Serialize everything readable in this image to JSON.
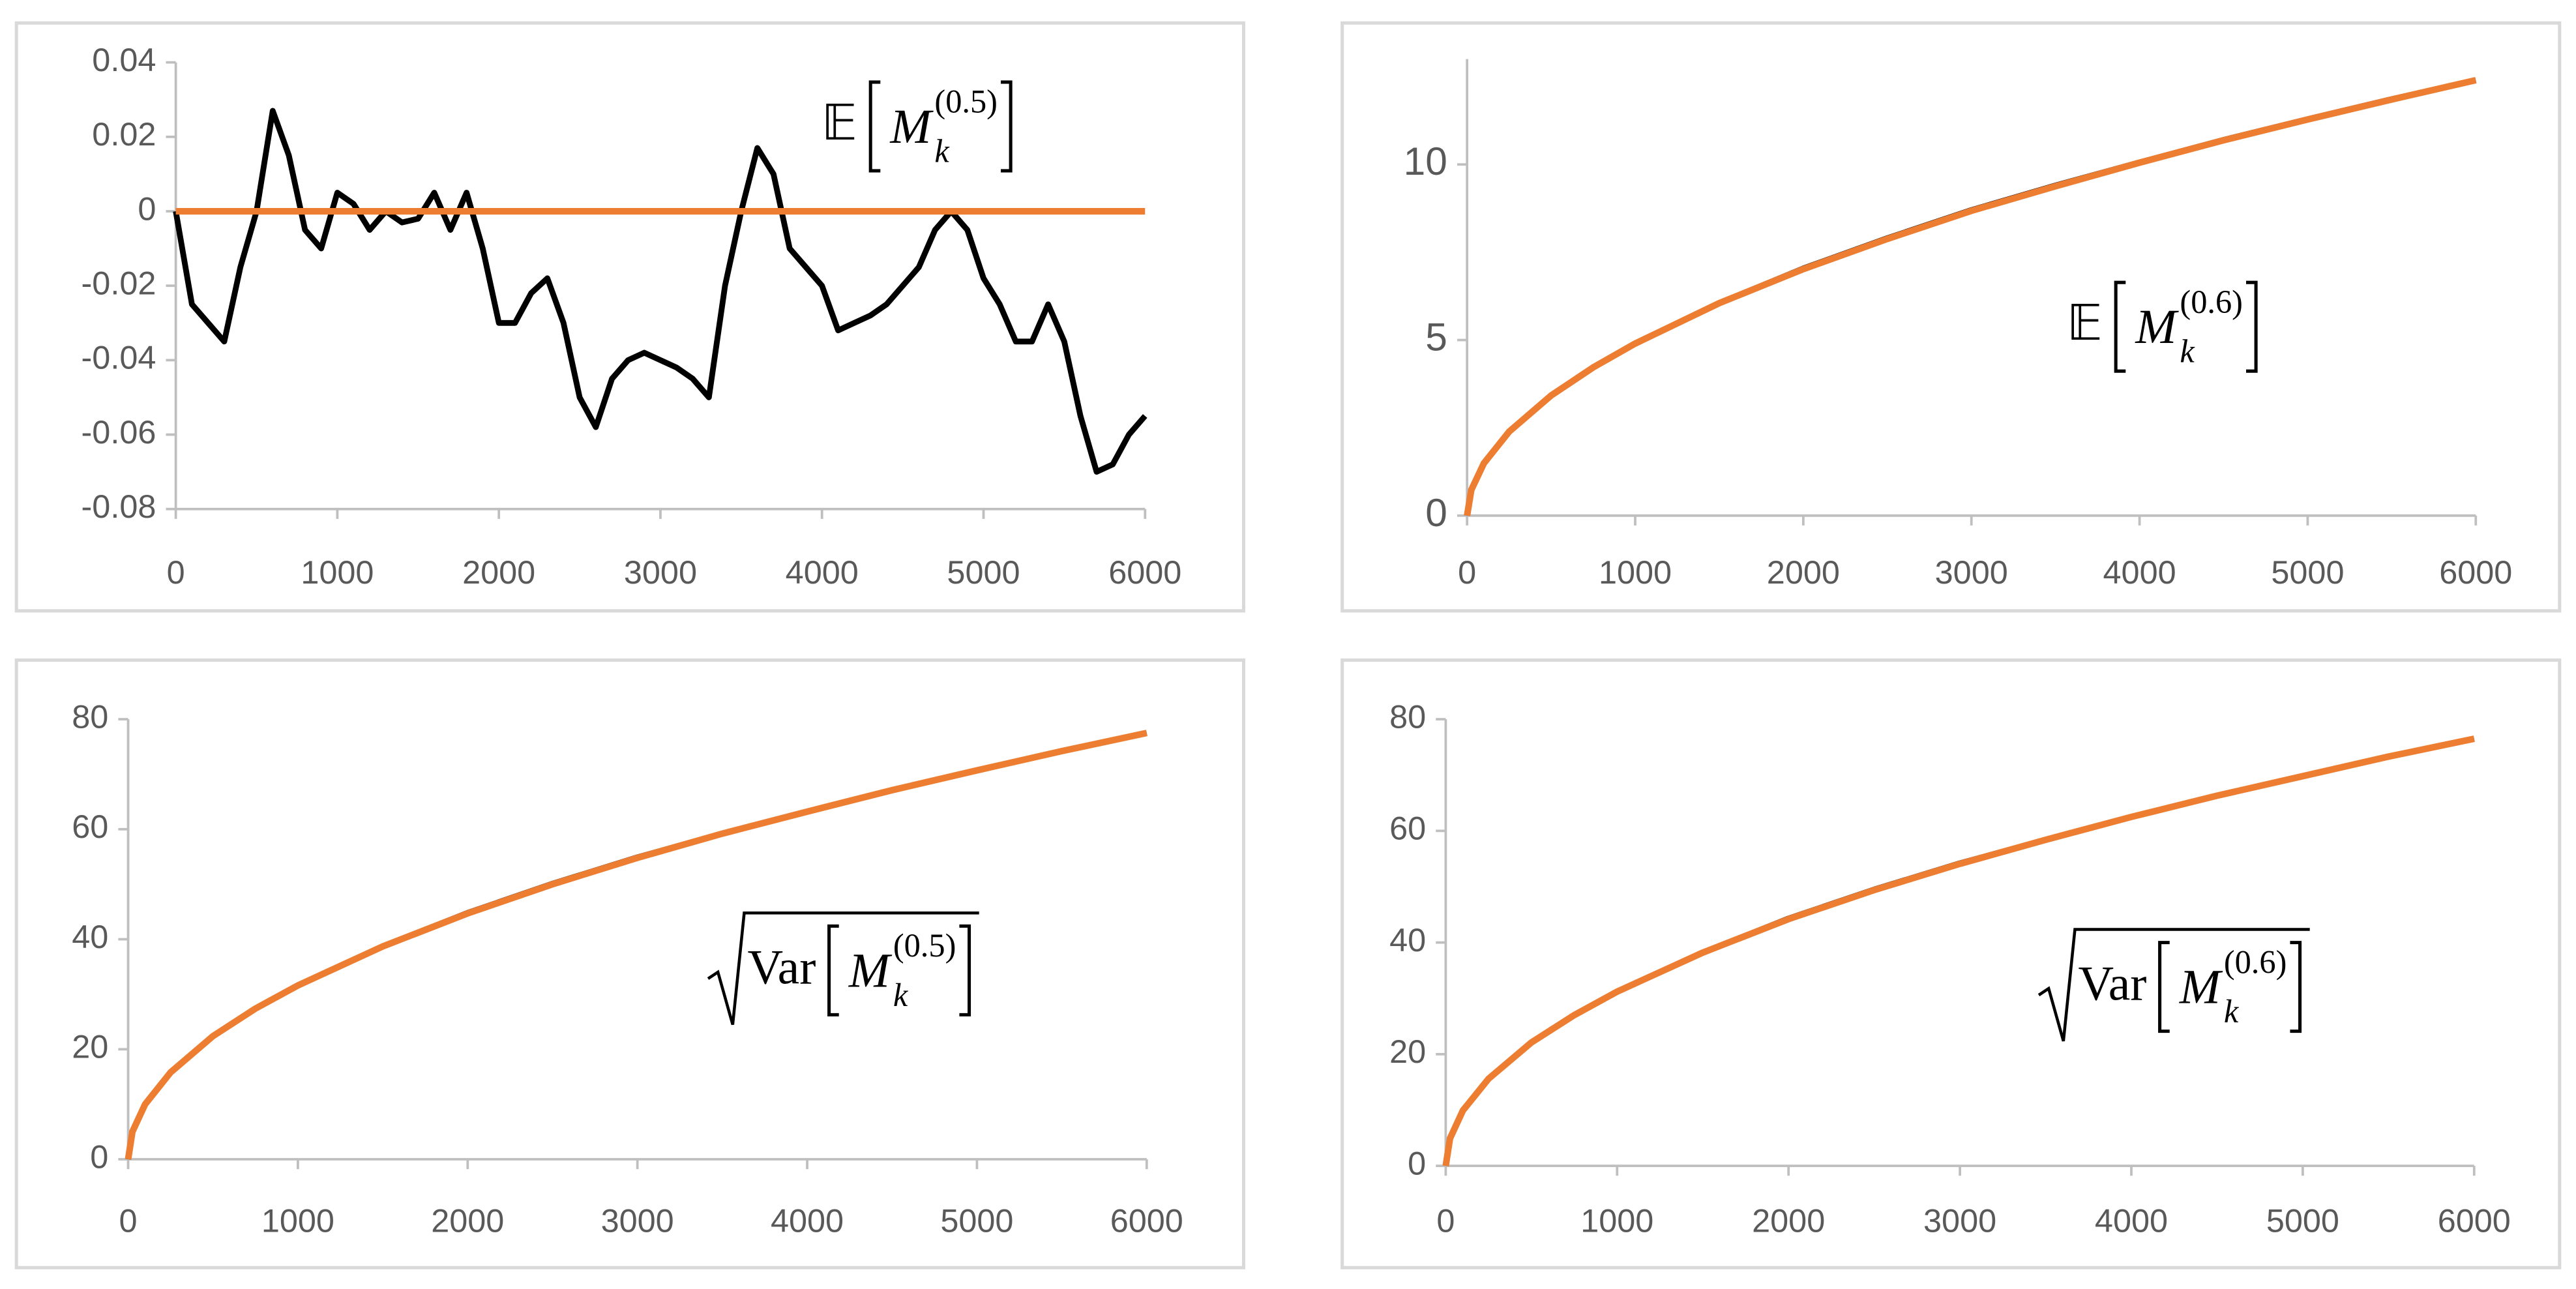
{
  "chart_data": [
    {
      "type": "line",
      "xlim": [
        0,
        6000
      ],
      "xticks": [
        0,
        1000,
        2000,
        3000,
        4000,
        5000,
        6000
      ],
      "ylim": [
        -0.08,
        0.04
      ],
      "yticks": [
        -0.08,
        -0.06,
        -0.04,
        -0.02,
        0,
        0.02,
        0.04
      ],
      "annotation": {
        "operator": "𝔼",
        "symbol": "M",
        "subscript": "k",
        "superscript": "(0.5)",
        "sqrt": false
      },
      "series": [
        {
          "color": "#000000",
          "x": [
            0,
            100,
            200,
            300,
            400,
            500,
            600,
            700,
            800,
            900,
            1000,
            1100,
            1200,
            1300,
            1400,
            1500,
            1600,
            1700,
            1800,
            1900,
            2000,
            2100,
            2200,
            2300,
            2400,
            2500,
            2600,
            2700,
            2800,
            2900,
            3000,
            3100,
            3200,
            3300,
            3400,
            3500,
            3600,
            3700,
            3800,
            3900,
            4000,
            4100,
            4200,
            4300,
            4400,
            4500,
            4600,
            4700,
            4800,
            4900,
            5000,
            5100,
            5200,
            5300,
            5400,
            5500,
            5600,
            5700,
            5800,
            5900,
            6000
          ],
          "values": [
            0,
            -0.025,
            -0.03,
            -0.035,
            -0.015,
            0,
            0.027,
            0.015,
            -0.005,
            -0.01,
            0.005,
            0.002,
            -0.005,
            0,
            -0.003,
            -0.002,
            0.005,
            -0.005,
            0.005,
            -0.01,
            -0.03,
            -0.03,
            -0.022,
            -0.018,
            -0.03,
            -0.05,
            -0.058,
            -0.045,
            -0.04,
            -0.038,
            -0.04,
            -0.042,
            -0.045,
            -0.05,
            -0.02,
            0,
            0.017,
            0.01,
            -0.01,
            -0.015,
            -0.02,
            -0.032,
            -0.03,
            -0.028,
            -0.025,
            -0.02,
            -0.015,
            -0.005,
            0,
            -0.005,
            -0.018,
            -0.025,
            -0.035,
            -0.035,
            -0.025,
            -0.035,
            -0.055,
            -0.07,
            -0.068,
            -0.06,
            -0.055
          ]
        },
        {
          "color": "#ed7d31",
          "x": [
            0,
            6000
          ],
          "values": [
            0,
            0
          ]
        }
      ]
    },
    {
      "type": "line",
      "xlim": [
        0,
        6000
      ],
      "xticks": [
        0,
        1000,
        2000,
        3000,
        4000,
        5000,
        6000
      ],
      "ylim": [
        0,
        13
      ],
      "yticks": [
        0,
        5,
        10
      ],
      "annotation": {
        "operator": "𝔼",
        "symbol": "M",
        "subscript": "k",
        "superscript": "(0.6)",
        "sqrt": false
      },
      "series": [
        {
          "color": "#000000",
          "x": [
            0,
            25,
            100,
            250,
            500,
            750,
            1000,
            1500,
            2000,
            2500,
            3000,
            3500,
            4000,
            4500,
            5000,
            5500,
            6000
          ],
          "values": [
            0,
            0.73,
            1.49,
            2.39,
            3.42,
            4.22,
            4.9,
            6.05,
            7.04,
            7.9,
            8.7,
            9.4,
            10.06,
            10.7,
            11.29,
            11.86,
            12.4
          ]
        },
        {
          "color": "#ed7d31",
          "x": [
            0,
            25,
            100,
            250,
            500,
            750,
            1000,
            1500,
            2000,
            2500,
            3000,
            3500,
            4000,
            4500,
            5000,
            5500,
            6000
          ],
          "values": [
            0,
            0.73,
            1.49,
            2.39,
            3.42,
            4.22,
            4.9,
            6.05,
            7.02,
            7.88,
            8.68,
            9.38,
            10.05,
            10.69,
            11.28,
            11.85,
            12.4
          ]
        }
      ]
    },
    {
      "type": "line",
      "xlim": [
        0,
        6000
      ],
      "xticks": [
        0,
        1000,
        2000,
        3000,
        4000,
        5000,
        6000
      ],
      "ylim": [
        0,
        80
      ],
      "yticks": [
        0,
        20,
        40,
        60,
        80
      ],
      "annotation": {
        "operator": "Var",
        "symbol": "M",
        "subscript": "k",
        "superscript": "(0.5)",
        "sqrt": true
      },
      "series": [
        {
          "color": "#000000",
          "x": [
            0,
            25,
            100,
            250,
            500,
            750,
            1000,
            1500,
            2000,
            2500,
            3000,
            3500,
            4000,
            4500,
            5000,
            5500,
            6000
          ],
          "values": [
            0,
            5,
            10,
            15.8,
            22.4,
            27.4,
            31.6,
            38.7,
            44.8,
            50.1,
            54.9,
            59.2,
            63.2,
            67.1,
            70.7,
            74.2,
            77.5
          ]
        },
        {
          "color": "#ed7d31",
          "x": [
            0,
            25,
            100,
            250,
            500,
            750,
            1000,
            1500,
            2000,
            2500,
            3000,
            3500,
            4000,
            4500,
            5000,
            5500,
            6000
          ],
          "values": [
            0,
            5,
            10,
            15.8,
            22.4,
            27.4,
            31.6,
            38.7,
            44.7,
            50,
            54.8,
            59.2,
            63.2,
            67.1,
            70.7,
            74.2,
            77.5
          ]
        }
      ]
    },
    {
      "type": "line",
      "xlim": [
        0,
        6000
      ],
      "xticks": [
        0,
        1000,
        2000,
        3000,
        4000,
        5000,
        6000
      ],
      "ylim": [
        0,
        80
      ],
      "yticks": [
        0,
        20,
        40,
        60,
        80
      ],
      "annotation": {
        "operator": "Var",
        "symbol": "M",
        "subscript": "k",
        "superscript": "(0.6)",
        "sqrt": true
      },
      "series": [
        {
          "color": "#000000",
          "x": [
            0,
            25,
            100,
            250,
            500,
            750,
            1000,
            1500,
            2000,
            2500,
            3000,
            3500,
            4000,
            4500,
            5000,
            5500,
            6000
          ],
          "values": [
            0,
            4.9,
            9.9,
            15.6,
            22.1,
            27,
            31.2,
            38.2,
            44.3,
            49.5,
            54.2,
            58.4,
            62.5,
            66.3,
            69.8,
            73.3,
            76.5
          ]
        },
        {
          "color": "#ed7d31",
          "x": [
            0,
            25,
            100,
            250,
            500,
            750,
            1000,
            1500,
            2000,
            2500,
            3000,
            3500,
            4000,
            4500,
            5000,
            5500,
            6000
          ],
          "values": [
            0,
            4.9,
            9.9,
            15.6,
            22.1,
            27,
            31.2,
            38.2,
            44.2,
            49.4,
            54.1,
            58.4,
            62.5,
            66.3,
            69.8,
            73.3,
            76.5
          ]
        }
      ]
    }
  ]
}
